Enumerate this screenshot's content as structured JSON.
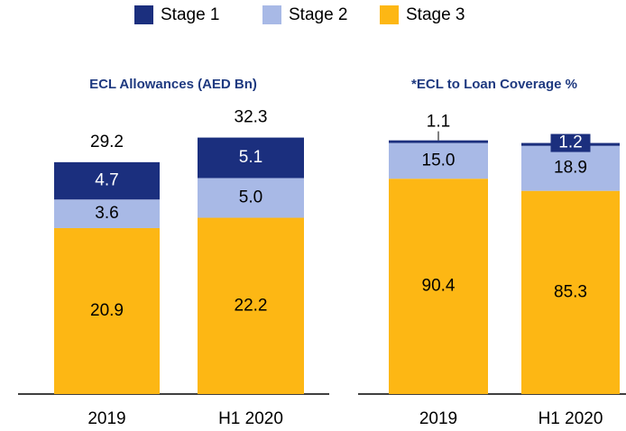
{
  "legend": [
    "Stage 1",
    "Stage 2",
    "Stage 3"
  ],
  "chart_data": [
    {
      "type": "bar",
      "stacked": true,
      "title": "ECL Allowances (AED Bn)",
      "categories": [
        "2019",
        "H1 2020"
      ],
      "series": [
        {
          "name": "Stage 3",
          "color": "#fdb714",
          "values": [
            20.9,
            22.2
          ]
        },
        {
          "name": "Stage 2",
          "color": "#a8b9e6",
          "values": [
            3.6,
            5.0
          ],
          "value_labels": [
            "3.6",
            "5.0"
          ]
        },
        {
          "name": "Stage 1",
          "color": "#1b2f7e",
          "values": [
            4.7,
            5.1
          ]
        }
      ],
      "totals": [
        29.2,
        32.3
      ],
      "ylim": [
        0,
        36
      ]
    },
    {
      "type": "bar",
      "stacked": true,
      "title": "*ECL to Loan Coverage %",
      "categories": [
        "2019",
        "H1 2020"
      ],
      "series": [
        {
          "name": "Stage 3",
          "color": "#fdb714",
          "values": [
            90.4,
            85.3
          ]
        },
        {
          "name": "Stage 2",
          "color": "#a8b9e6",
          "values": [
            15.0,
            18.9
          ],
          "value_labels": [
            "15.0",
            "18.9"
          ]
        },
        {
          "name": "Stage 1",
          "color": "#1b2f7e",
          "values": [
            1.1,
            1.2
          ]
        }
      ],
      "ylim": [
        0,
        120
      ]
    }
  ]
}
